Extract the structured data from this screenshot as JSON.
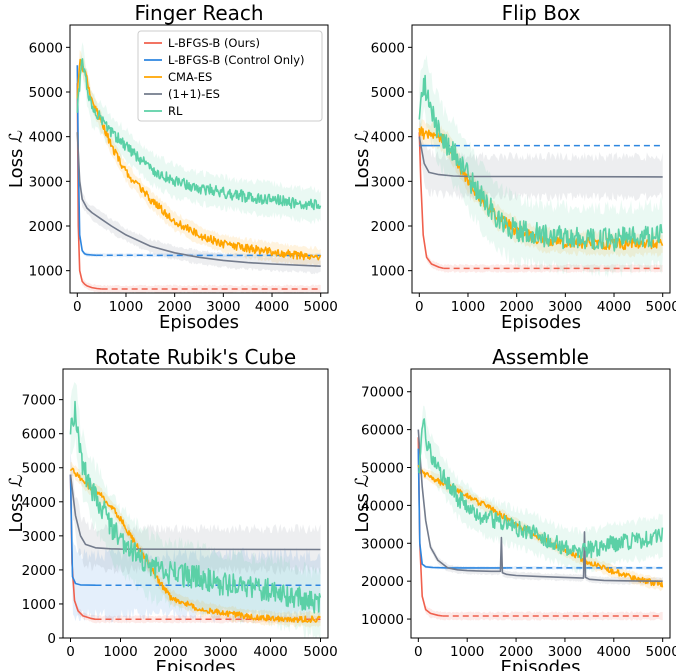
{
  "chart_data": [
    {
      "type": "line",
      "title": "Finger Reach",
      "xlabel": "Episodes",
      "ylabel": "Loss ℒ",
      "xlim": [
        -150,
        5150
      ],
      "ylim": [
        500,
        6500
      ],
      "xticks": [
        0,
        1000,
        2000,
        3000,
        4000,
        5000
      ],
      "yticks": [
        1000,
        2000,
        3000,
        4000,
        5000,
        6000
      ],
      "legend": "top-right",
      "series": [
        {
          "name": "L-BFGS-B (Ours)",
          "color": "#f0604d",
          "dashed_after": 500,
          "x": [
            0,
            20,
            50,
            100,
            150,
            200,
            300,
            400,
            500,
            5000
          ],
          "y": [
            5200,
            2000,
            1000,
            760,
            700,
            660,
            620,
            600,
            590,
            590
          ],
          "band": 80
        },
        {
          "name": "L-BFGS-B (Control Only)",
          "color": "#2d86e0",
          "dashed_after": 400,
          "x": [
            0,
            20,
            50,
            100,
            150,
            200,
            300,
            400,
            5000
          ],
          "y": [
            5600,
            3500,
            1800,
            1450,
            1380,
            1360,
            1350,
            1345,
            1340
          ],
          "band": 40
        },
        {
          "name": "CMA-ES",
          "color": "#ffa500",
          "dashed_after": null,
          "x": [
            0,
            50,
            100,
            200,
            300,
            500,
            700,
            1000,
            1500,
            2000,
            2500,
            3000,
            3500,
            4000,
            4500,
            5000
          ],
          "y": [
            4900,
            5700,
            5600,
            5300,
            4800,
            4300,
            3800,
            3200,
            2600,
            2100,
            1800,
            1600,
            1500,
            1420,
            1350,
            1300
          ],
          "band": 200,
          "noise": 90
        },
        {
          "name": "(1+1)-ES",
          "color": "#737b8c",
          "dashed_after": null,
          "x": [
            0,
            50,
            100,
            200,
            300,
            500,
            700,
            1000,
            1500,
            2000,
            2500,
            3000,
            3500,
            4000,
            5000
          ],
          "y": [
            4100,
            3000,
            2600,
            2400,
            2300,
            2150,
            2000,
            1800,
            1550,
            1400,
            1300,
            1230,
            1180,
            1150,
            1100
          ],
          "band": 150
        },
        {
          "name": "RL",
          "color": "#5bd0a6",
          "dashed_after": null,
          "x": [
            0,
            100,
            200,
            300,
            500,
            700,
            1000,
            1500,
            2000,
            2500,
            3000,
            3500,
            4000,
            4500,
            5000
          ],
          "y": [
            4600,
            5800,
            5100,
            4600,
            4400,
            4100,
            3800,
            3300,
            3000,
            2850,
            2750,
            2650,
            2600,
            2500,
            2450
          ],
          "band": 350,
          "noise": 130
        }
      ]
    },
    {
      "type": "line",
      "title": "Flip Box",
      "xlabel": "Episodes",
      "ylabel": "Loss ℒ",
      "xlim": [
        -150,
        5150
      ],
      "ylim": [
        500,
        6500
      ],
      "xticks": [
        0,
        1000,
        2000,
        3000,
        4000,
        5000
      ],
      "yticks": [
        1000,
        2000,
        3000,
        4000,
        5000,
        6000
      ],
      "series": [
        {
          "name": "L-BFGS-B (Ours)",
          "color": "#f0604d",
          "dashed_after": 500,
          "x": [
            0,
            30,
            80,
            150,
            250,
            400,
            500,
            5000
          ],
          "y": [
            4100,
            3000,
            1800,
            1300,
            1150,
            1080,
            1050,
            1050
          ],
          "band": 80
        },
        {
          "name": "L-BFGS-B (Control Only)",
          "color": "#2d86e0",
          "dashed_after": 300,
          "x": [
            0,
            300,
            5000
          ],
          "y": [
            3800,
            3800,
            3800
          ],
          "band": 0
        },
        {
          "name": "CMA-ES",
          "color": "#ffa500",
          "dashed_after": null,
          "x": [
            0,
            200,
            400,
            600,
            800,
            1000,
            1300,
            1600,
            2000,
            2500,
            3000,
            3500,
            4000,
            4500,
            5000
          ],
          "y": [
            4100,
            4050,
            4000,
            3800,
            3400,
            3000,
            2600,
            2200,
            1900,
            1700,
            1650,
            1620,
            1600,
            1600,
            1600
          ],
          "band": 250,
          "noise": 130
        },
        {
          "name": "(1+1)-ES",
          "color": "#737b8c",
          "dashed_after": null,
          "x": [
            0,
            100,
            200,
            400,
            700,
            1000,
            5000
          ],
          "y": [
            4000,
            3400,
            3200,
            3150,
            3120,
            3110,
            3100
          ],
          "band": 450
        },
        {
          "name": "RL",
          "color": "#5bd0a6",
          "dashed_after": null,
          "x": [
            0,
            100,
            300,
            500,
            800,
            1000,
            1300,
            1600,
            2000,
            2500,
            3000,
            3500,
            4000,
            4500,
            5000
          ],
          "y": [
            4500,
            5200,
            4400,
            3900,
            3500,
            3100,
            2600,
            2200,
            1900,
            1800,
            1750,
            1700,
            1700,
            1750,
            1800
          ],
          "band": 700,
          "noise": 260
        }
      ]
    },
    {
      "type": "line",
      "title": "Rotate Rubik's Cube",
      "xlabel": "Episodes",
      "ylabel": "Loss ℒ",
      "xlim": [
        -150,
        5150
      ],
      "ylim": [
        0,
        7900
      ],
      "xticks": [
        0,
        1000,
        2000,
        3000,
        4000,
        5000
      ],
      "yticks": [
        0,
        1000,
        2000,
        3000,
        4000,
        5000,
        6000,
        7000
      ],
      "series": [
        {
          "name": "L-BFGS-B (Ours)",
          "color": "#f0604d",
          "dashed_after": 500,
          "x": [
            0,
            30,
            80,
            150,
            250,
            400,
            500,
            5000
          ],
          "y": [
            4800,
            2200,
            1100,
            800,
            650,
            580,
            550,
            550
          ],
          "band": 100
        },
        {
          "name": "L-BFGS-B (Control Only)",
          "color": "#2d86e0",
          "dashed_after": 500,
          "x": [
            0,
            40,
            100,
            200,
            500,
            5000
          ],
          "y": [
            4800,
            1800,
            1600,
            1560,
            1550,
            1550
          ],
          "band": 900
        },
        {
          "name": "CMA-ES",
          "color": "#ffa500",
          "dashed_after": null,
          "x": [
            0,
            200,
            400,
            600,
            800,
            1000,
            1200,
            1500,
            1800,
            2000,
            2500,
            3000,
            3500,
            4000,
            4500,
            5000
          ],
          "y": [
            5000,
            4700,
            4400,
            4200,
            3900,
            3500,
            3000,
            2300,
            1600,
            1200,
            900,
            750,
            650,
            580,
            550,
            550
          ],
          "band": 200,
          "noise": 90
        },
        {
          "name": "(1+1)-ES",
          "color": "#737b8c",
          "dashed_after": null,
          "x": [
            0,
            100,
            200,
            300,
            500,
            800,
            1000,
            5000
          ],
          "y": [
            4800,
            3600,
            3000,
            2750,
            2650,
            2620,
            2610,
            2600
          ],
          "band": 600
        },
        {
          "name": "RL",
          "color": "#5bd0a6",
          "dashed_after": null,
          "x": [
            0,
            100,
            200,
            400,
            600,
            800,
            1000,
            1300,
            1600,
            2000,
            2500,
            3000,
            3500,
            4000,
            4500,
            5000
          ],
          "y": [
            6200,
            6700,
            5300,
            4400,
            3900,
            3300,
            2900,
            2500,
            2100,
            1900,
            1800,
            1600,
            1500,
            1400,
            1200,
            950
          ],
          "band": 900,
          "noise": 350
        }
      ]
    },
    {
      "type": "line",
      "title": "Assemble",
      "xlabel": "Episodes",
      "ylabel": "Loss ℒ",
      "xlim": [
        -150,
        5150
      ],
      "ylim": [
        5000,
        76000
      ],
      "xticks": [
        0,
        1000,
        2000,
        3000,
        4000,
        5000
      ],
      "yticks": [
        10000,
        20000,
        30000,
        40000,
        50000,
        60000,
        70000
      ],
      "series": [
        {
          "name": "L-BFGS-B (Ours)",
          "color": "#f0604d",
          "dashed_after": 500,
          "x": [
            0,
            30,
            80,
            150,
            250,
            400,
            500,
            5000
          ],
          "y": [
            58000,
            30000,
            16000,
            12500,
            11500,
            11000,
            10800,
            10800
          ],
          "band": 1000
        },
        {
          "name": "L-BFGS-B (Control Only)",
          "color": "#2d86e0",
          "dashed_after": 1800,
          "x": [
            0,
            30,
            80,
            150,
            300,
            600,
            1000,
            1500,
            1800,
            5000
          ],
          "y": [
            55000,
            30000,
            24500,
            23800,
            23600,
            23500,
            23500,
            23500,
            23500,
            23500
          ],
          "band": 400
        },
        {
          "name": "CMA-ES",
          "color": "#ffa500",
          "dashed_after": null,
          "x": [
            0,
            100,
            200,
            400,
            700,
            1000,
            1500,
            2000,
            2500,
            3000,
            3500,
            4000,
            4500,
            5000
          ],
          "y": [
            50000,
            48500,
            48000,
            46500,
            44500,
            42500,
            39000,
            35000,
            31500,
            28000,
            25000,
            22500,
            20500,
            19000
          ],
          "band": 1500,
          "noise": 800
        },
        {
          "name": "(1+1)-ES",
          "color": "#737b8c",
          "dashed_after": null,
          "x": [
            0,
            40,
            80,
            150,
            250,
            400,
            600,
            800,
            1000,
            1200,
            1500,
            1680,
            1700,
            1720,
            1800,
            2000,
            2500,
            3000,
            3380,
            3400,
            3420,
            3500,
            3800,
            4200,
            5000
          ],
          "y": [
            60000,
            52000,
            45000,
            36000,
            29000,
            25500,
            23500,
            23000,
            22800,
            22700,
            22600,
            22600,
            31500,
            22200,
            21800,
            21500,
            21200,
            21000,
            20800,
            33000,
            21000,
            20500,
            20200,
            20100,
            20000
          ],
          "band": 900
        },
        {
          "name": "RL",
          "color": "#5bd0a6",
          "dashed_after": null,
          "x": [
            0,
            100,
            200,
            400,
            600,
            800,
            1000,
            1300,
            1600,
            2000,
            2300,
            2600,
            3000,
            3300,
            3600,
            4000,
            4300,
            4600,
            5000
          ],
          "y": [
            48000,
            62000,
            55000,
            50000,
            46000,
            42000,
            40000,
            37000,
            36000,
            34000,
            33000,
            31000,
            29000,
            28000,
            28500,
            30000,
            30500,
            31000,
            32000
          ],
          "band": 5000,
          "noise": 2200
        }
      ]
    }
  ]
}
